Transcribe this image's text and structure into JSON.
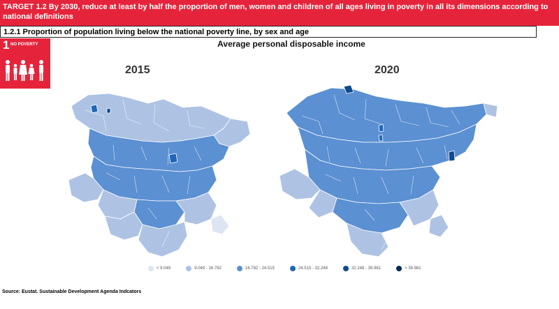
{
  "header": {
    "target_text": "TARGET 1.2 By 2030, reduce at least by half the proportion of men, women and children of all ages living in poverty in all its dimensions according to national definitions",
    "indicator_text": "1.2.1 Proportion of population living below the national poverty line, by sex and age"
  },
  "sdg_badge": {
    "number": "1",
    "label": "NO POVERTY",
    "color": "#e5243b"
  },
  "figure": {
    "title": "Average personal disposable income",
    "maps": [
      {
        "year": "2015",
        "dominant_class": "16.782 - 24.515"
      },
      {
        "year": "2020",
        "dominant_class": "16.782 - 24.515"
      }
    ],
    "legend": [
      {
        "label": "< 9.049",
        "color": "#dde5f3"
      },
      {
        "label": "9.049 - 16.782",
        "color": "#aec3e4"
      },
      {
        "label": "16.782 - 24.515",
        "color": "#5b90d2"
      },
      {
        "label": "24.515 - 32.248",
        "color": "#1f66b6"
      },
      {
        "label": "32.248 - 39.981",
        "color": "#0f4a8c"
      },
      {
        "label": "> 39.981",
        "color": "#082a55"
      }
    ]
  },
  "footer": {
    "source": "Source: Eustat. Sustainable Development Agenda Indcators"
  }
}
